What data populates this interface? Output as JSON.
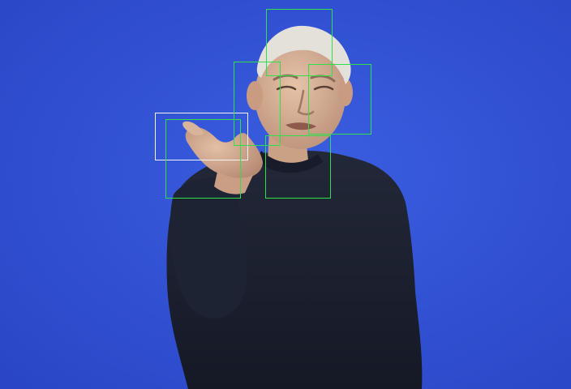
{
  "scene": {
    "subject": "person",
    "background_color": "#2f4fd2",
    "shirt_color": "#1c2130",
    "skin_color": "#d7b49a",
    "hair_color": "#e2ddd6"
  },
  "detections": {
    "primary_box_color": "#f2f2f2",
    "secondary_box_color": "#2fe04a"
  }
}
